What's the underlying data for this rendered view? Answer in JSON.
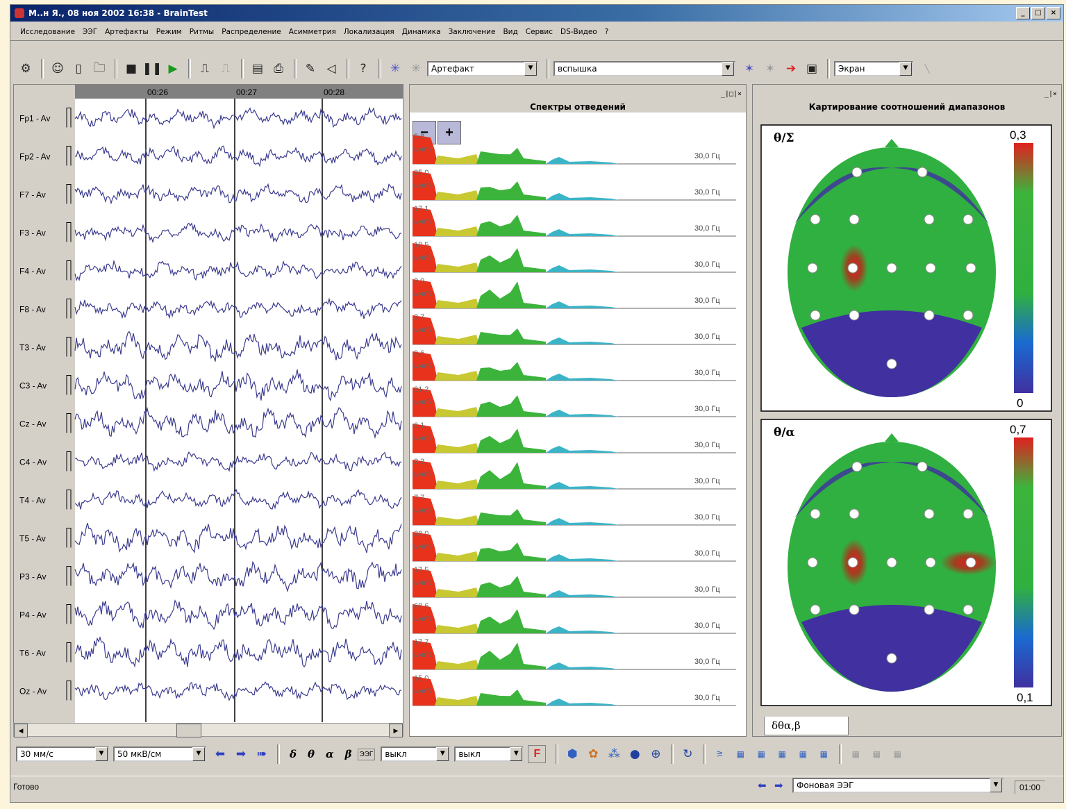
{
  "window": {
    "title": "М..н Я., 08 ноя 2002 16:38 - BrainTest",
    "min": "_",
    "max": "□",
    "close": "×"
  },
  "menu": [
    "Исследование",
    "ЭЭГ",
    "Артефакты",
    "Режим",
    "Ритмы",
    "Распределение",
    "Асимметрия",
    "Локализация",
    "Динамика",
    "Заключение",
    "Вид",
    "Сервис",
    "DS-Видео",
    "?"
  ],
  "toolbar": {
    "artifact_combo": "Артефакт",
    "flash_combo": "вспышка",
    "screen_combo": "Экран"
  },
  "eeg": {
    "time_marks": [
      "00:26",
      "00:27",
      "00:28"
    ],
    "channels": [
      "Fp1 - Av",
      "Fp2 - Av",
      "F7 - Av",
      "F3 - Av",
      "F4 - Av",
      "F8 - Av",
      "T3 - Av",
      "C3 - Av",
      "Cz - Av",
      "C4 - Av",
      "T4 - Av",
      "T5 - Av",
      "P3 - Av",
      "P4 - Av",
      "T6 - Av",
      "Oz - Av"
    ],
    "trace_color": "#3b3b8f"
  },
  "spectra": {
    "title": "Спектры отведений",
    "zoom_out": "−",
    "zoom_in": "+",
    "freq_label": "30,0 Гц",
    "unit_label": "мкв^2",
    "values": [
      "5,8",
      "25,0",
      "17,1",
      "10,5",
      "3,9",
      "3,7",
      "9,6",
      "31,2",
      "6,1",
      "2,2",
      "7,7",
      "28,0",
      "17,5",
      "68,6",
      "17,7",
      "15,0"
    ],
    "colors": {
      "delta": "#e8321c",
      "theta": "#c8c832",
      "alpha": "#3cb43c",
      "beta": "#3cb4c8"
    }
  },
  "mapping": {
    "title": "Картирование соотношений диапазонов",
    "maps": [
      {
        "label": "θ/Σ",
        "max": "0,3",
        "min": "0"
      },
      {
        "label": "θ/α",
        "max": "0,7",
        "min": "0,1"
      }
    ],
    "tab": "δθα,β"
  },
  "bottom": {
    "speed": "30 мм/с",
    "sensitivity": "50 мкВ/см",
    "rhythm_buttons": [
      "δ",
      "θ",
      "α",
      "β"
    ],
    "eeg_btn": "ЭЭГ",
    "combo1": "выкл",
    "combo2": "выкл",
    "f_btn": "F"
  },
  "status": {
    "text": "Готово",
    "mode": "Фоновая ЭЭГ",
    "time": "01:00"
  }
}
